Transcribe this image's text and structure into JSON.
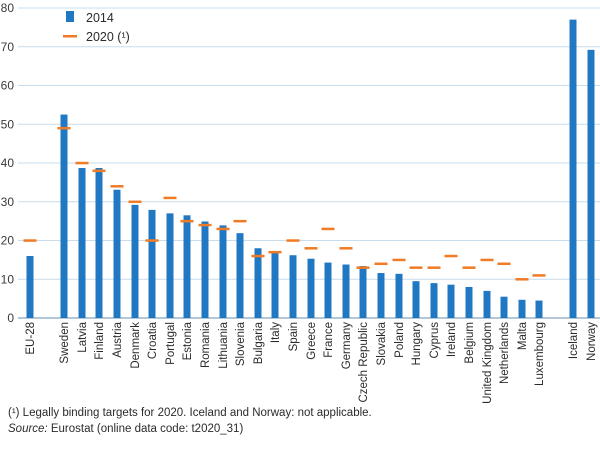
{
  "chart_data": {
    "type": "bar",
    "categories": [
      "EU-28",
      "Sweden",
      "Latvia",
      "Finland",
      "Austria",
      "Denmark",
      "Croatia",
      "Portugal",
      "Estonia",
      "Romania",
      "Lithuania",
      "Slovenia",
      "Bulgaria",
      "Italy",
      "Spain",
      "Greece",
      "France",
      "Germany",
      "Czech Republic",
      "Slovakia",
      "Poland",
      "Hungary",
      "Cyprus",
      "Ireland",
      "Belgium",
      "United Kingdom",
      "Netherlands",
      "Malta",
      "Luxembourg",
      "Iceland",
      "Norway"
    ],
    "series": [
      {
        "name": "2014",
        "kind": "bar",
        "color": "#1f78c1",
        "values": [
          16,
          52.5,
          38.7,
          38.7,
          33.1,
          29.2,
          27.9,
          27,
          26.5,
          24.9,
          23.9,
          21.9,
          18,
          17.1,
          16.2,
          15.3,
          14.3,
          13.8,
          13.4,
          11.6,
          11.4,
          9.5,
          9,
          8.6,
          8,
          7,
          5.5,
          4.7,
          4.5,
          77,
          69.2
        ]
      },
      {
        "name": "2020 (¹)",
        "kind": "target",
        "color": "#f07b25",
        "values": [
          20,
          49,
          40,
          38,
          34,
          30,
          20,
          31,
          25,
          24,
          23,
          25,
          16,
          17,
          20,
          18,
          23,
          18,
          13,
          14,
          15,
          13,
          13,
          16,
          13,
          15,
          14,
          10,
          11,
          null,
          null
        ]
      }
    ],
    "ylim": [
      0,
      80
    ],
    "yticks": [
      0,
      10,
      20,
      30,
      40,
      50,
      60,
      70,
      80
    ],
    "grid": true,
    "legend_position": "top-left"
  },
  "legend": {
    "bar_label": "2014",
    "target_label": "2020 (¹)"
  },
  "notes": {
    "footnote": "(¹) Legally binding targets for 2020. Iceland and Norway: not applicable.",
    "source_label": "Source:",
    "source_text": " Eurostat (online data code: t2020_31)"
  }
}
